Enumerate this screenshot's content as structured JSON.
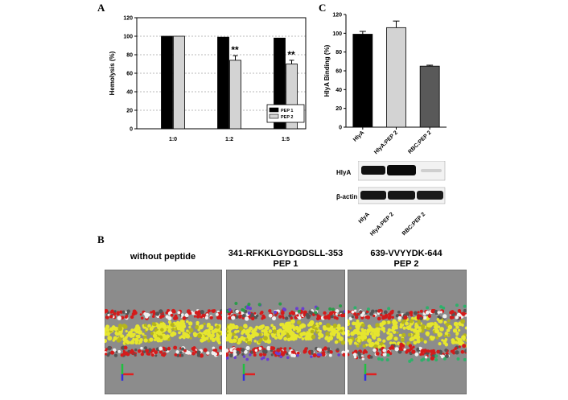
{
  "panels": {
    "a_letter": "A",
    "b_letter": "B",
    "c_letter": "C"
  },
  "colors": {
    "black": "#000000",
    "lightgray": "#cccccc",
    "darkgray": "#595959",
    "md_bg": "#8c8c8c"
  },
  "chart_data": [
    {
      "type": "bar",
      "panel": "A",
      "title": "",
      "xlabel": "",
      "ylabel": "Hemolysis (%)",
      "ylim": [
        0,
        120
      ],
      "yticks": [
        "0",
        "20",
        "40",
        "60",
        "80",
        "100",
        "120"
      ],
      "grid": true,
      "legend_position": "bottom-right",
      "categories": [
        "1:0",
        "1:2",
        "1:5"
      ],
      "series": [
        {
          "name": "PEP 1",
          "values": [
            100,
            99,
            98
          ],
          "errors": [
            0,
            0,
            0
          ],
          "color": "#000000"
        },
        {
          "name": "PEP 2",
          "values": [
            100,
            74,
            70
          ],
          "errors": [
            0,
            5,
            4
          ],
          "color": "#d3d3d3"
        }
      ],
      "annotations": [
        "**",
        "**"
      ]
    },
    {
      "type": "bar",
      "panel": "C",
      "title": "",
      "xlabel": "",
      "ylabel": "HlyA Binding (%)",
      "ylim": [
        0,
        120
      ],
      "yticks": [
        "0",
        "20",
        "40",
        "60",
        "80",
        "100",
        "120"
      ],
      "grid": false,
      "categories": [
        "HlyA",
        "HlyA:PEP 2",
        "RBC:PEP 2"
      ],
      "values": [
        99,
        106,
        65
      ],
      "errors": [
        3,
        7,
        1
      ],
      "colors": [
        "#000000",
        "#d3d3d3",
        "#595959"
      ]
    }
  ],
  "blot": {
    "row_labels": [
      "HlyA",
      "β-actin"
    ],
    "lane_labels": [
      "HlyA",
      "HlyA:PEP 2",
      "RBC:PEP 2"
    ]
  },
  "md": {
    "titles": [
      [
        "without peptide"
      ],
      [
        "341-RFKKLGYDGDSLL-353",
        "PEP 1"
      ],
      [
        "639-VVYYDK-644",
        "PEP 2"
      ]
    ]
  }
}
